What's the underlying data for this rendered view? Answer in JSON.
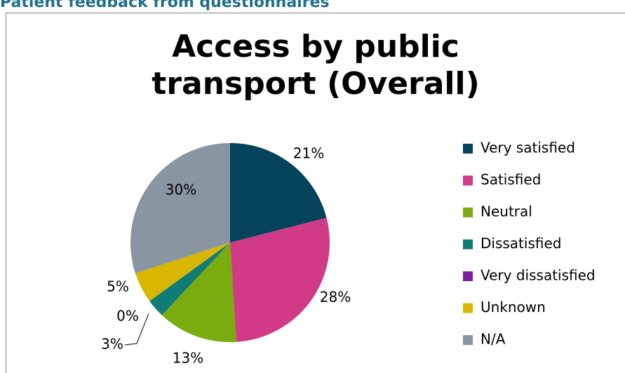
{
  "header": {
    "title": "Patient feedback from questionnaires"
  },
  "chart_data": {
    "type": "pie",
    "title": "Access by public transport (Overall)",
    "categories": [
      "Very satisfied",
      "Satisfied",
      "Neutral",
      "Dissatisfied",
      "Very dissatisfied",
      "Unknown",
      "N/A"
    ],
    "values": [
      21,
      28,
      13,
      3,
      0,
      5,
      30
    ],
    "value_labels": [
      "21%",
      "28%",
      "13%",
      "3%",
      "0%",
      "5%",
      "30%"
    ],
    "colors": [
      "#03435c",
      "#d13a87",
      "#7aab0f",
      "#0f7c76",
      "#7b1fa2",
      "#d9b700",
      "#8996a1"
    ],
    "legend": "right"
  }
}
